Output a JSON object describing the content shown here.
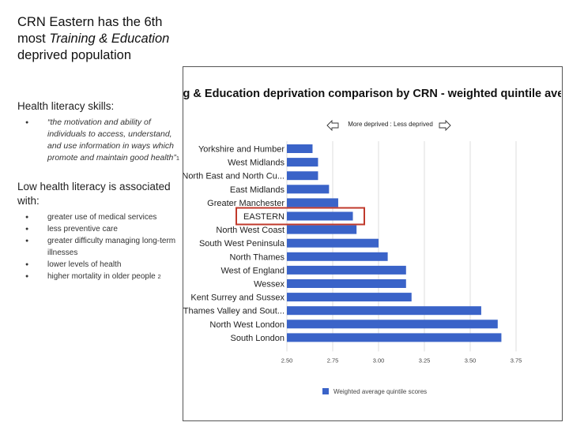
{
  "slide": {
    "title_line1": "CRN Eastern has the 6th",
    "title_line2_pre": "most ",
    "title_line2_em": "Training & Education",
    "title_line3": "deprived population",
    "health_literacy_heading": "Health literacy skills:",
    "quote": "“the motivation and ability of individuals to access, understand, and use information in ways which promote and maintain good health”",
    "quote_ref": "1",
    "low_literacy_heading": "Low health literacy is associated with:",
    "associations": [
      "greater use of medical services",
      "less preventive care",
      "greater difficulty managing long-term illnesses",
      "lower levels of health"
    ],
    "last_association": "higher mortality in older people",
    "last_association_ref": "2"
  },
  "colors": {
    "bar": "#3a63c8",
    "highlight_box": "#c0392b"
  },
  "chart_data": {
    "type": "bar",
    "orientation": "horizontal",
    "title": "Training & Education deprivation comparison by CRN - weighted quintile averages",
    "direction_label": "More deprived : Less deprived",
    "categories": [
      "Yorkshire and Humber",
      "West Midlands",
      "North East and North Cu...",
      "East Midlands",
      "Greater Manchester",
      "EASTERN",
      "North West Coast",
      "South West Peninsula",
      "North Thames",
      "West of England",
      "Wessex",
      "Kent Surrey and Sussex",
      "Thames Valley and Sout...",
      "North West London",
      "South London"
    ],
    "values": [
      2.64,
      2.67,
      2.67,
      2.73,
      2.78,
      2.86,
      2.88,
      3.0,
      3.05,
      3.15,
      3.15,
      3.18,
      3.56,
      3.65,
      3.67
    ],
    "highlight": "EASTERN",
    "xlim": [
      2.5,
      3.75
    ],
    "xticks": [
      "2.50",
      "2.75",
      "3.00",
      "3.25",
      "3.50",
      "3.75"
    ],
    "legend": "Weighted average quintile scores",
    "legend_position": "bottom-left"
  }
}
